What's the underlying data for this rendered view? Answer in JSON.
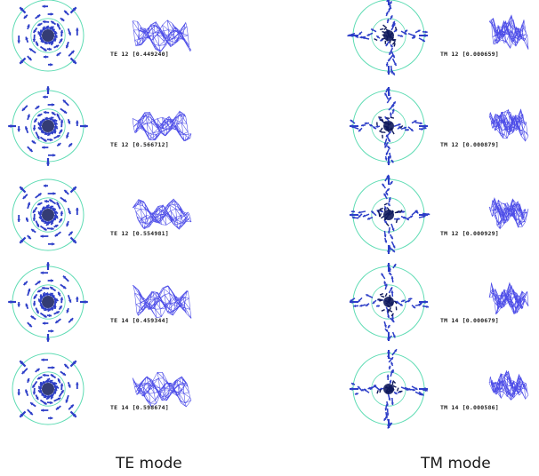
{
  "colors": {
    "circle": "#5fdcb4",
    "arrows": "#2d3ec8",
    "arrows_dark": "#101a5c",
    "mesh": "#3a3ae6"
  },
  "columns": [
    {
      "caption": "TE mode",
      "panels": [
        {
          "mode": "TE 12",
          "value": "[0.449240]"
        },
        {
          "mode": "TE 12",
          "value": "[0.566712]"
        },
        {
          "mode": "TE 12",
          "value": "[0.554981]"
        },
        {
          "mode": "TE 14",
          "value": "[0.459344]"
        },
        {
          "mode": "TE 14",
          "value": "[0.598674]"
        }
      ]
    },
    {
      "caption": "TM mode",
      "panels": [
        {
          "mode": "TM 12",
          "value": "[0.000659]"
        },
        {
          "mode": "TM 12",
          "value": "[0.000879]"
        },
        {
          "mode": "TM 12",
          "value": "[0.000929]"
        },
        {
          "mode": "TM 14",
          "value": "[0.000679]"
        },
        {
          "mode": "TM 14",
          "value": "[0.000586]"
        }
      ]
    }
  ]
}
